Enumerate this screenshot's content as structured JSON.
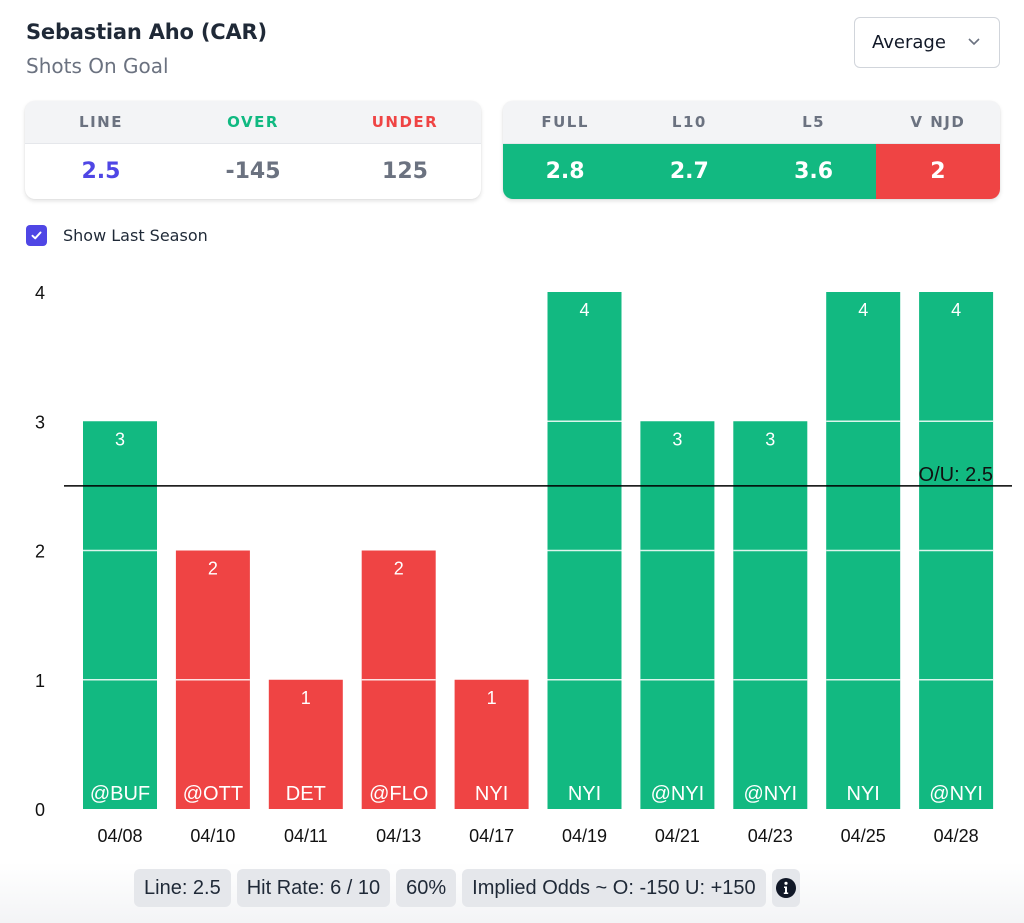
{
  "header": {
    "title": "Sebastian Aho (CAR)",
    "subtitle": "Shots On Goal"
  },
  "dropdown": {
    "selected": "Average",
    "icon": "chevron-down-icon"
  },
  "odds_card": {
    "columns": [
      {
        "label": "LINE",
        "value": "2.5",
        "label_color": "#6b7280",
        "value_color": "#4f46e5"
      },
      {
        "label": "OVER",
        "value": "-145",
        "label_color": "#10b981",
        "value_color": "#6b7280"
      },
      {
        "label": "UNDER",
        "value": "125",
        "label_color": "#ef4444",
        "value_color": "#6b7280"
      }
    ]
  },
  "averages_card": {
    "columns": [
      {
        "label": "FULL",
        "value": "2.8",
        "status": "over"
      },
      {
        "label": "L10",
        "value": "2.7",
        "status": "over"
      },
      {
        "label": "L5",
        "value": "3.6",
        "status": "over"
      },
      {
        "label": "V NJD",
        "value": "2",
        "status": "under"
      }
    ]
  },
  "show_last_season": {
    "label": "Show Last Season",
    "checked": true
  },
  "colors": {
    "over": "#12b981",
    "under": "#ef4444",
    "accent": "#4f46e5"
  },
  "chart_data": {
    "type": "bar",
    "title": "",
    "xlabel": "",
    "ylabel": "",
    "ylim": [
      0,
      4
    ],
    "yticks": [
      "0",
      "1",
      "2",
      "3",
      "4"
    ],
    "grid": false,
    "categories": [
      "04/08",
      "04/10",
      "04/11",
      "04/13",
      "04/17",
      "04/19",
      "04/21",
      "04/23",
      "04/25",
      "04/28"
    ],
    "opponents": [
      "@BUF",
      "@OTT",
      "DET",
      "@FLO",
      "NYI",
      "NYI",
      "@NYI",
      "@NYI",
      "NYI",
      "@NYI"
    ],
    "values": [
      3,
      2,
      1,
      2,
      1,
      4,
      3,
      3,
      4,
      4
    ],
    "reference_line": {
      "value": 2.5,
      "label": "O/U: 2.5"
    },
    "color_rule": "value > line: green, else red"
  },
  "footer": {
    "pills": [
      "Line: 2.5",
      "Hit Rate: 6 / 10",
      "60%",
      "Implied Odds ~ O: -150 U: +150"
    ],
    "info_icon": "info-icon"
  }
}
